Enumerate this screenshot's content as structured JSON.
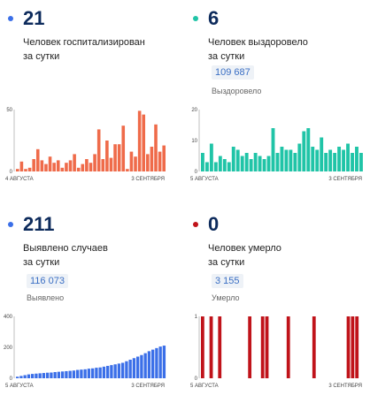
{
  "panels": {
    "hosp": {
      "value": "21",
      "caption_line1": "Человек госпитализирован",
      "caption_line2": "за сутки",
      "color": "#ef6b4a"
    },
    "recov": {
      "value": "6",
      "caption_line1": "Человек выздоровело",
      "caption_line2": "за сутки",
      "total": "109 687",
      "total_label": "Выздоровело",
      "color": "#20c4a7"
    },
    "cases": {
      "value": "211",
      "caption_line1": "Выявлено случаев",
      "caption_line2": "за сутки",
      "total": "116 073",
      "total_label": "Выявлено",
      "color": "#3b6fe8"
    },
    "deaths": {
      "value": "0",
      "caption_line1": "Человек умерло",
      "caption_line2": "за сутки",
      "total": "3 155",
      "total_label": "Умерло",
      "color": "#c0131a"
    }
  },
  "chart_data": [
    {
      "type": "bar",
      "series": [
        {
          "values": [
            2,
            8,
            2,
            3,
            10,
            18,
            9,
            6,
            12,
            7,
            9,
            3,
            7,
            9,
            14,
            3,
            6,
            10,
            7,
            14,
            34,
            10,
            25,
            11,
            22,
            22,
            37,
            2,
            16,
            12,
            49,
            46,
            14,
            20,
            38,
            16,
            21
          ]
        }
      ],
      "ylim": [
        0,
        50
      ],
      "y_ticks": [
        "0",
        "50"
      ],
      "x_start_label": "4 АВГУСТА",
      "x_end_label": "3 СЕНТЯБРЯ"
    },
    {
      "type": "bar",
      "series": [
        {
          "values": [
            6,
            3,
            9,
            3,
            5,
            4,
            3,
            8,
            7,
            5,
            6,
            4,
            6,
            5,
            4,
            5,
            14,
            6,
            8,
            7,
            7,
            6,
            9,
            13,
            14,
            8,
            7,
            11,
            6,
            7,
            6,
            8,
            7,
            9,
            6,
            8,
            6
          ]
        }
      ],
      "ylim": [
        0,
        20
      ],
      "y_ticks": [
        "0",
        "10",
        "20"
      ],
      "x_start_label": "5 АВГУСТА",
      "x_end_label": "3 СЕНТЯБРЯ"
    },
    {
      "type": "bar",
      "series": [
        {
          "values": [
            10,
            15,
            20,
            25,
            28,
            30,
            32,
            34,
            36,
            37,
            40,
            42,
            44,
            46,
            48,
            50,
            54,
            56,
            58,
            62,
            64,
            68,
            70,
            75,
            80,
            85,
            90,
            95,
            100,
            110,
            120,
            130,
            140,
            150,
            162,
            175,
            185,
            195,
            205,
            211
          ]
        }
      ],
      "ylim": [
        0,
        400
      ],
      "y_ticks": [
        "0",
        "200",
        "400"
      ],
      "x_start_label": "5 АВГУСТА",
      "x_end_label": "3 СЕНТЯБРЯ"
    },
    {
      "type": "bar",
      "series": [
        {
          "values": [
            1,
            0,
            1,
            0,
            1,
            0,
            0,
            0,
            0,
            0,
            0,
            1,
            0,
            0,
            1,
            1,
            0,
            0,
            0,
            0,
            1,
            0,
            0,
            0,
            0,
            0,
            1,
            0,
            0,
            0,
            0,
            0,
            0,
            0,
            1,
            1,
            1,
            0
          ]
        }
      ],
      "ylim": [
        0,
        1
      ],
      "y_ticks": [
        "0",
        "1"
      ],
      "x_start_label": "5 АВГУСТА",
      "x_end_label": "3 СЕНТЯБРЯ"
    }
  ]
}
